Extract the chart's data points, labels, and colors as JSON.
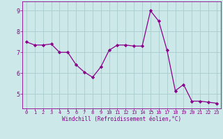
{
  "x": [
    0,
    1,
    2,
    3,
    4,
    5,
    6,
    7,
    8,
    9,
    10,
    11,
    12,
    13,
    14,
    15,
    16,
    17,
    18,
    19,
    20,
    21,
    22,
    23
  ],
  "y": [
    7.5,
    7.35,
    7.35,
    7.4,
    7.0,
    7.0,
    6.4,
    6.05,
    5.8,
    6.3,
    7.1,
    7.35,
    7.35,
    7.3,
    7.3,
    9.0,
    8.5,
    7.1,
    5.15,
    5.45,
    4.65,
    4.65,
    4.6,
    4.55
  ],
  "line_color": "#8B008B",
  "marker_color": "#8B008B",
  "bg_color": "#cce8e8",
  "grid_color": "#aacccc",
  "xlabel": "Windchill (Refroidissement éolien,°C)",
  "ylim_min": 4.3,
  "ylim_max": 9.45,
  "xlim_min": -0.5,
  "xlim_max": 23.5,
  "yticks": [
    5,
    6,
    7,
    8,
    9
  ],
  "xticks": [
    0,
    1,
    2,
    3,
    4,
    5,
    6,
    7,
    8,
    9,
    10,
    11,
    12,
    13,
    14,
    15,
    16,
    17,
    18,
    19,
    20,
    21,
    22,
    23
  ]
}
